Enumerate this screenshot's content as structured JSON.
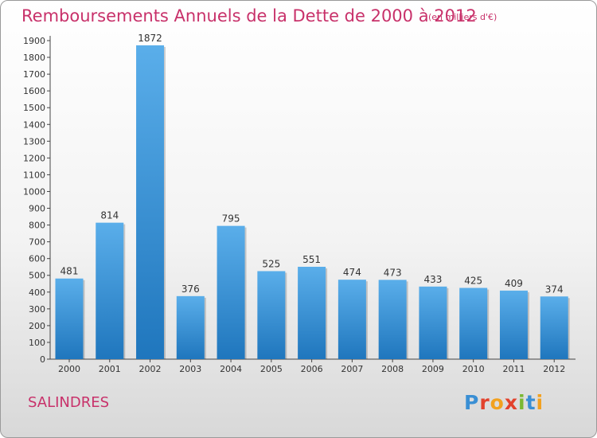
{
  "title": "Remboursements Annuels de la Dette de 2000 à 2012",
  "unit_note": "(en milliers d'€)",
  "location": "SALINDRES",
  "logo": {
    "text": "Proxiti",
    "letters": [
      {
        "ch": "P",
        "color": "#3a8fd4"
      },
      {
        "ch": "r",
        "color": "#e2422c"
      },
      {
        "ch": "o",
        "color": "#f2a11f"
      },
      {
        "ch": "x",
        "color": "#e2422c"
      },
      {
        "ch": "i",
        "color": "#7ab833"
      },
      {
        "ch": "t",
        "color": "#3a8fd4"
      },
      {
        "ch": "i",
        "color": "#f2a11f"
      }
    ]
  },
  "colors": {
    "title": "#c8316a",
    "bar_top": "#5aaeea",
    "bar_bottom": "#1f76bd",
    "axis": "#444444",
    "grid": "#cfcfcf"
  },
  "chart_data": {
    "type": "bar",
    "title": "Remboursements Annuels de la Dette de 2000 à 2012",
    "xlabel": "",
    "ylabel": "",
    "categories": [
      "2000",
      "2001",
      "2002",
      "2003",
      "2004",
      "2005",
      "2006",
      "2007",
      "2008",
      "2009",
      "2010",
      "2011",
      "2012"
    ],
    "values": [
      481,
      814,
      1872,
      376,
      795,
      525,
      551,
      474,
      473,
      433,
      425,
      409,
      374
    ],
    "ylim": [
      0,
      1900
    ],
    "yticks": [
      0,
      100,
      200,
      300,
      400,
      500,
      600,
      700,
      800,
      900,
      1000,
      1100,
      1200,
      1300,
      1400,
      1500,
      1600,
      1700,
      1800,
      1900
    ],
    "grid": false,
    "data_labels": true
  }
}
